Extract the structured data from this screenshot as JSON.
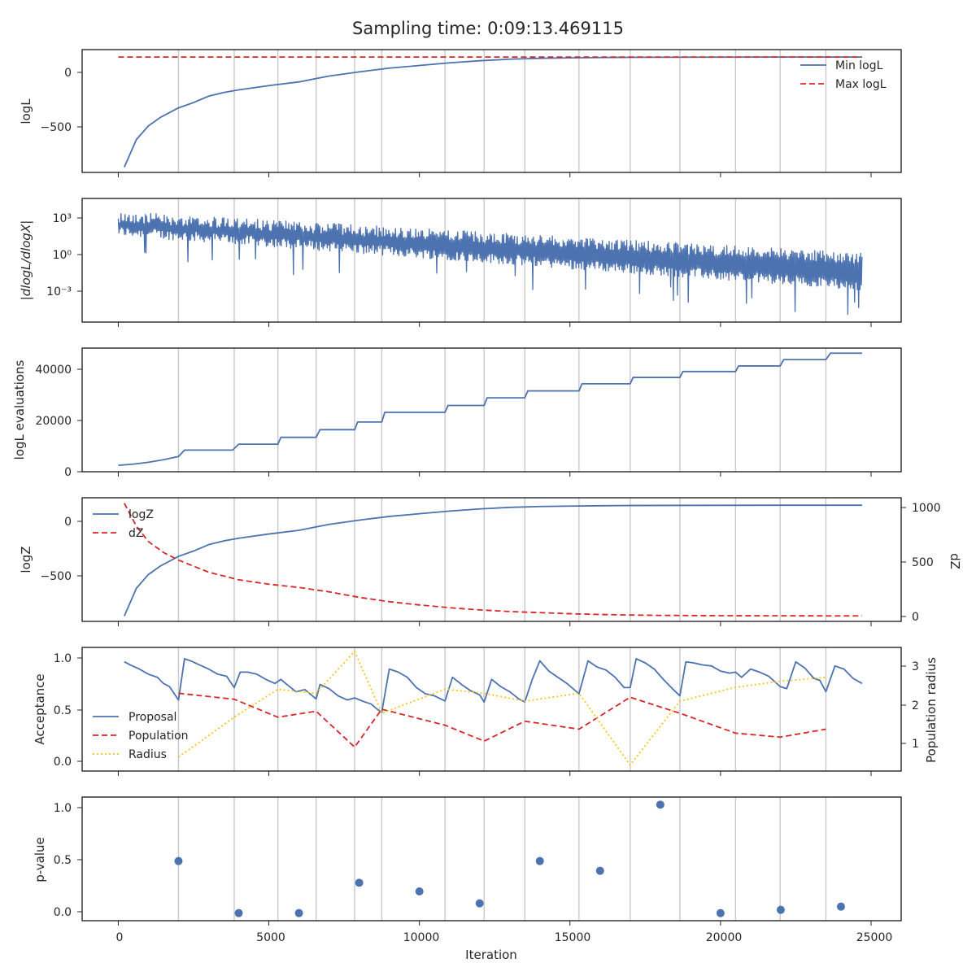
{
  "title": "Sampling time: 0:09:13.469115",
  "xlabel": "Iteration",
  "x_ticks": [
    "0",
    "5000",
    "10000",
    "15000",
    "20000",
    "25000"
  ],
  "colors": {
    "blue": "#4c72b0",
    "red": "#d62728",
    "yellow": "#f5c518",
    "vline": "#c8c8c8",
    "frame": "#262626"
  },
  "chart_data": [
    {
      "type": "line",
      "xlim": [
        -1200,
        26000
      ],
      "ylim": [
        -930,
        230
      ],
      "ylabel": "logL",
      "y_ticks": [
        "0",
        "−500"
      ],
      "legend": "top-right",
      "vlines": [
        2000,
        3850,
        5300,
        6570,
        7850,
        8750,
        10850,
        12150,
        13500,
        15300,
        17000,
        18650,
        20500,
        21980,
        23500
      ],
      "series": [
        {
          "name": "Min logL",
          "style": "solid",
          "color": "blue",
          "x": [
            200,
            600,
            1000,
            1400,
            2000,
            2500,
            3000,
            3500,
            4000,
            4500,
            5000,
            6000,
            7000,
            8000,
            9000,
            10000,
            11000,
            12000,
            13000,
            14000,
            15000,
            16000,
            17000,
            18000,
            20000,
            22000,
            24700
          ],
          "y": [
            -880,
            -620,
            -490,
            -410,
            -320,
            -270,
            -210,
            -175,
            -150,
            -130,
            -110,
            -75,
            -20,
            20,
            55,
            80,
            105,
            125,
            140,
            148,
            152,
            155,
            157,
            158,
            159,
            160,
            160
          ]
        },
        {
          "name": "Max logL",
          "style": "dashed",
          "color": "red",
          "x": [
            0,
            24700
          ],
          "y": [
            160,
            160
          ]
        }
      ]
    },
    {
      "type": "line",
      "xlim": [
        -1200,
        26000
      ],
      "ylim": [
        -5.3,
        4.5
      ],
      "yscale": "log",
      "ylabel": "|dlogL/dlogX|",
      "y_ticks": [
        "10³",
        "10⁰",
        "10⁻³"
      ],
      "vlines": [
        2000,
        3850,
        5300,
        6570,
        7850,
        8750,
        10850,
        12150,
        13500,
        15300,
        17000,
        18650,
        20500,
        21980,
        23500
      ],
      "series": [
        {
          "style": "noisy",
          "color": "blue",
          "x_start": 0,
          "x_end": 24700,
          "log10_upper_start": 3.5,
          "log10_upper_end": 0.2,
          "log10_lower_start": 1.5,
          "log10_lower_end": -2.8,
          "log10_min": -5.0
        }
      ]
    },
    {
      "type": "line",
      "xlim": [
        -1200,
        26000
      ],
      "ylim": [
        -500,
        48000
      ],
      "ylabel": "logL evaluations",
      "y_ticks": [
        "40000",
        "20000",
        "0"
      ],
      "vlines": [
        2000,
        3850,
        5300,
        6570,
        7850,
        8750,
        10850,
        12150,
        13500,
        15300,
        17000,
        18650,
        20500,
        21980,
        23500
      ],
      "series": [
        {
          "style": "solid",
          "color": "blue",
          "x": [
            0,
            500,
            1000,
            1500,
            2000,
            2200,
            3800,
            4000,
            5300,
            5400,
            6570,
            6700,
            7850,
            7950,
            8750,
            8850,
            10850,
            10950,
            12150,
            12250,
            13500,
            13600,
            15300,
            15400,
            17000,
            17100,
            18650,
            18750,
            20500,
            20600,
            21980,
            22100,
            23500,
            23650,
            24700
          ],
          "y": [
            2000,
            2500,
            3200,
            4200,
            5500,
            8000,
            8000,
            10300,
            10300,
            13000,
            13000,
            16000,
            16000,
            19000,
            19000,
            22800,
            22800,
            25500,
            25500,
            28500,
            28500,
            31200,
            31200,
            34000,
            34000,
            36500,
            36500,
            38800,
            38800,
            41000,
            41000,
            43500,
            43500,
            46000,
            46000
          ]
        }
      ]
    },
    {
      "type": "line",
      "xlim": [
        -1200,
        26000
      ],
      "ylim": [
        -930,
        230
      ],
      "ylabel": "logZ",
      "y_ticks": [
        "0",
        "−500"
      ],
      "ylim_right": [
        -50,
        1080
      ],
      "ylabel_right": "dZ",
      "y_ticks_right": [
        "1000",
        "500",
        "0"
      ],
      "legend": "top-left",
      "vlines": [
        2000,
        3850,
        5300,
        6570,
        7850,
        8750,
        10850,
        12150,
        13500,
        15300,
        17000,
        18650,
        20500,
        21980,
        23500
      ],
      "series": [
        {
          "name": "logZ",
          "style": "solid",
          "color": "blue",
          "axis": "left",
          "x": [
            200,
            600,
            1000,
            1400,
            2000,
            2500,
            3000,
            3500,
            4000,
            4500,
            5000,
            6000,
            7000,
            8000,
            9000,
            10000,
            11000,
            12000,
            13000,
            14000,
            15000,
            16000,
            17000,
            18000,
            20000,
            22000,
            24700
          ],
          "y": [
            -880,
            -620,
            -490,
            -410,
            -320,
            -270,
            -210,
            -175,
            -150,
            -130,
            -110,
            -75,
            -20,
            20,
            55,
            80,
            105,
            125,
            140,
            148,
            152,
            155,
            157,
            158,
            159,
            160,
            160
          ]
        },
        {
          "name": "dZ",
          "style": "dashed",
          "color": "red",
          "axis": "right",
          "x": [
            200,
            600,
            1000,
            1500,
            2000,
            3000,
            4000,
            5000,
            6000,
            7000,
            8000,
            9000,
            10000,
            11000,
            12000,
            13000,
            14000,
            15000,
            16000,
            17000,
            18000,
            20000,
            22000,
            24700
          ],
          "y": [
            1030,
            820,
            680,
            580,
            510,
            400,
            330,
            290,
            260,
            220,
            170,
            130,
            100,
            75,
            55,
            40,
            30,
            20,
            13,
            8,
            5,
            2,
            1,
            0
          ]
        }
      ]
    },
    {
      "type": "line",
      "xlim": [
        -1200,
        26000
      ],
      "ylim": [
        -0.1,
        1.1
      ],
      "ylabel": "Acceptance",
      "y_ticks": [
        "1.0",
        "0.5",
        "0.0"
      ],
      "ylim_right": [
        0.35,
        3.45
      ],
      "ylabel_right": "Population radius",
      "y_ticks_right": [
        "3",
        "2",
        "1"
      ],
      "legend": "bottom-left",
      "vlines": [
        2000,
        3850,
        5300,
        6570,
        7850,
        8750,
        10850,
        12150,
        13500,
        15300,
        17000,
        18650,
        20500,
        21980,
        23500
      ],
      "series": [
        {
          "name": "Proposal",
          "style": "solid",
          "color": "blue",
          "axis": "left",
          "x": [
            200,
            400,
            700,
            1000,
            1300,
            1500,
            1700,
            2000,
            2200,
            2400,
            2700,
            3000,
            3300,
            3600,
            3850,
            4050,
            4300,
            4600,
            4900,
            5200,
            5400,
            5600,
            5900,
            6200,
            6570,
            6700,
            7000,
            7300,
            7600,
            7850,
            8100,
            8400,
            8600,
            8750,
            9000,
            9300,
            9600,
            9900,
            10200,
            10500,
            10850,
            11100,
            11400,
            11700,
            12000,
            12150,
            12400,
            12700,
            13000,
            13300,
            13500,
            13750,
            14000,
            14300,
            14600,
            14900,
            15300,
            15600,
            15900,
            16200,
            16500,
            16800,
            17000,
            17200,
            17500,
            17800,
            18100,
            18400,
            18650,
            18850,
            19100,
            19400,
            19700,
            20000,
            20300,
            20500,
            20700,
            21000,
            21300,
            21600,
            21980,
            22200,
            22500,
            22800,
            23100,
            23300,
            23500,
            23800,
            24100,
            24400,
            24700
          ],
          "y": [
            0.96,
            0.93,
            0.89,
            0.84,
            0.81,
            0.75,
            0.72,
            0.59,
            0.99,
            0.97,
            0.93,
            0.89,
            0.84,
            0.82,
            0.71,
            0.86,
            0.86,
            0.84,
            0.79,
            0.75,
            0.79,
            0.74,
            0.67,
            0.69,
            0.6,
            0.74,
            0.7,
            0.63,
            0.59,
            0.61,
            0.58,
            0.55,
            0.5,
            0.47,
            0.89,
            0.86,
            0.81,
            0.71,
            0.65,
            0.63,
            0.58,
            0.81,
            0.74,
            0.68,
            0.64,
            0.57,
            0.79,
            0.72,
            0.67,
            0.6,
            0.57,
            0.79,
            0.97,
            0.87,
            0.81,
            0.75,
            0.65,
            0.97,
            0.91,
            0.88,
            0.81,
            0.71,
            0.71,
            0.99,
            0.95,
            0.89,
            0.79,
            0.7,
            0.63,
            0.96,
            0.95,
            0.93,
            0.92,
            0.87,
            0.85,
            0.86,
            0.81,
            0.89,
            0.86,
            0.82,
            0.72,
            0.7,
            0.96,
            0.9,
            0.8,
            0.78,
            0.67,
            0.92,
            0.89,
            0.8,
            0.75
          ]
        },
        {
          "name": "Population",
          "style": "dashed",
          "color": "red",
          "axis": "right",
          "x": [
            2000,
            3850,
            5300,
            6570,
            7850,
            8750,
            10850,
            12150,
            13500,
            15300,
            17000,
            18650,
            20500,
            21980,
            23500
          ],
          "y": [
            2.3,
            2.15,
            1.7,
            1.85,
            0.95,
            1.9,
            1.5,
            1.1,
            1.6,
            1.4,
            2.2,
            1.8,
            1.3,
            1.2,
            1.4
          ]
        },
        {
          "name": "Radius",
          "style": "dotted",
          "color": "yellow",
          "axis": "right",
          "x": [
            2000,
            3850,
            5300,
            6570,
            7850,
            8750,
            10850,
            12150,
            13500,
            15300,
            17000,
            18650,
            20500,
            21980,
            23500
          ],
          "y": [
            0.7,
            1.7,
            2.4,
            2.3,
            3.35,
            1.8,
            2.4,
            2.3,
            2.1,
            2.3,
            0.5,
            2.1,
            2.45,
            2.6,
            2.7
          ]
        }
      ]
    },
    {
      "type": "scatter",
      "xlim": [
        -1200,
        26000
      ],
      "ylim": [
        -0.07,
        1.07
      ],
      "ylabel": "p-value",
      "y_ticks": [
        "1.0",
        "0.5",
        "0.0"
      ],
      "vlines": [
        2000,
        3850,
        5300,
        6570,
        7850,
        8750,
        10850,
        12150,
        13500,
        15300,
        17000,
        18650,
        20500,
        21980,
        23500
      ],
      "series": [
        {
          "style": "points",
          "color": "blue",
          "x": [
            2000,
            4000,
            6000,
            8000,
            10000,
            12000,
            14000,
            16000,
            18000,
            20000,
            22000,
            24000
          ],
          "y": [
            0.48,
            0.0,
            0.0,
            0.28,
            0.2,
            0.09,
            0.48,
            0.39,
            1.0,
            0.0,
            0.03,
            0.06
          ]
        }
      ]
    }
  ]
}
